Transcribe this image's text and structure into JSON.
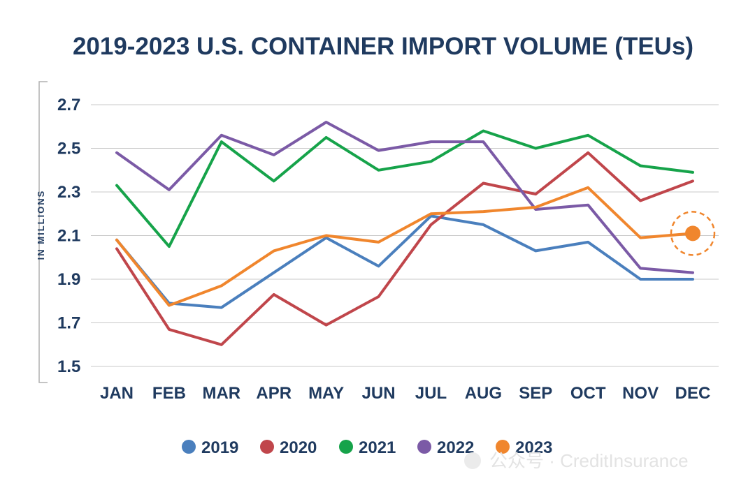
{
  "chart_data": {
    "type": "line",
    "title": "2019-2023 U.S. CONTAINER IMPORT VOLUME (TEUs)",
    "ylabel": "IN MILLIONS",
    "xlabel": "",
    "categories": [
      "JAN",
      "FEB",
      "MAR",
      "APR",
      "MAY",
      "JUN",
      "JUL",
      "AUG",
      "SEP",
      "OCT",
      "NOV",
      "DEC"
    ],
    "ylim": [
      1.5,
      2.7
    ],
    "yticks": [
      1.5,
      1.7,
      1.9,
      2.1,
      2.3,
      2.5,
      2.7
    ],
    "ytick_labels": [
      "1.5",
      "1.7",
      "1.9",
      "2.1",
      "2.3",
      "2.5",
      "2.7"
    ],
    "grid": true,
    "legend_position": "bottom",
    "series": [
      {
        "name": "2019",
        "color": "#4a7fbd",
        "values": [
          2.08,
          1.79,
          1.77,
          1.93,
          2.09,
          1.96,
          2.19,
          2.15,
          2.03,
          2.07,
          1.9,
          1.9
        ]
      },
      {
        "name": "2020",
        "color": "#c0464b",
        "values": [
          2.04,
          1.67,
          1.6,
          1.83,
          1.69,
          1.82,
          2.15,
          2.34,
          2.29,
          2.48,
          2.26,
          2.35
        ]
      },
      {
        "name": "2021",
        "color": "#16a34a",
        "values": [
          2.33,
          2.05,
          2.53,
          2.35,
          2.55,
          2.4,
          2.44,
          2.58,
          2.5,
          2.56,
          2.42,
          2.39
        ]
      },
      {
        "name": "2022",
        "color": "#7b5aa6",
        "values": [
          2.48,
          2.31,
          2.56,
          2.47,
          2.62,
          2.49,
          2.53,
          2.53,
          2.22,
          2.24,
          1.95,
          1.93
        ]
      },
      {
        "name": "2023",
        "color": "#f0862d",
        "values": [
          2.08,
          1.78,
          1.87,
          2.03,
          2.1,
          2.07,
          2.2,
          2.21,
          2.23,
          2.32,
          2.09,
          2.11
        ]
      }
    ],
    "highlight": {
      "series": "2023",
      "category": "DEC"
    }
  },
  "watermark": {
    "icon": "wechat-icon",
    "text": "公众号 · CreditInsurance"
  }
}
